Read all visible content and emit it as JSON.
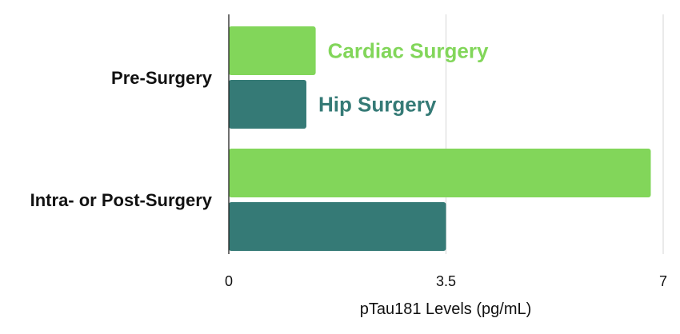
{
  "chart_data": {
    "type": "bar",
    "orientation": "horizontal",
    "categories": [
      "Pre-Surgery",
      "Intra- or Post-Surgery"
    ],
    "series": [
      {
        "name": "Cardiac Surgery",
        "color": "#82d65a",
        "values": [
          1.4,
          6.8
        ]
      },
      {
        "name": "Hip Surgery",
        "color": "#357a76",
        "values": [
          1.25,
          3.5
        ]
      }
    ],
    "xlabel": "pTau181 Levels (pg/mL)",
    "xlim": [
      0,
      7
    ],
    "xticks": [
      0,
      3.5,
      7
    ],
    "xtick_labels": [
      "0",
      "3.5",
      "7"
    ],
    "grid": true,
    "legend_placement": "inline next to the Pre-Surgery bars"
  }
}
